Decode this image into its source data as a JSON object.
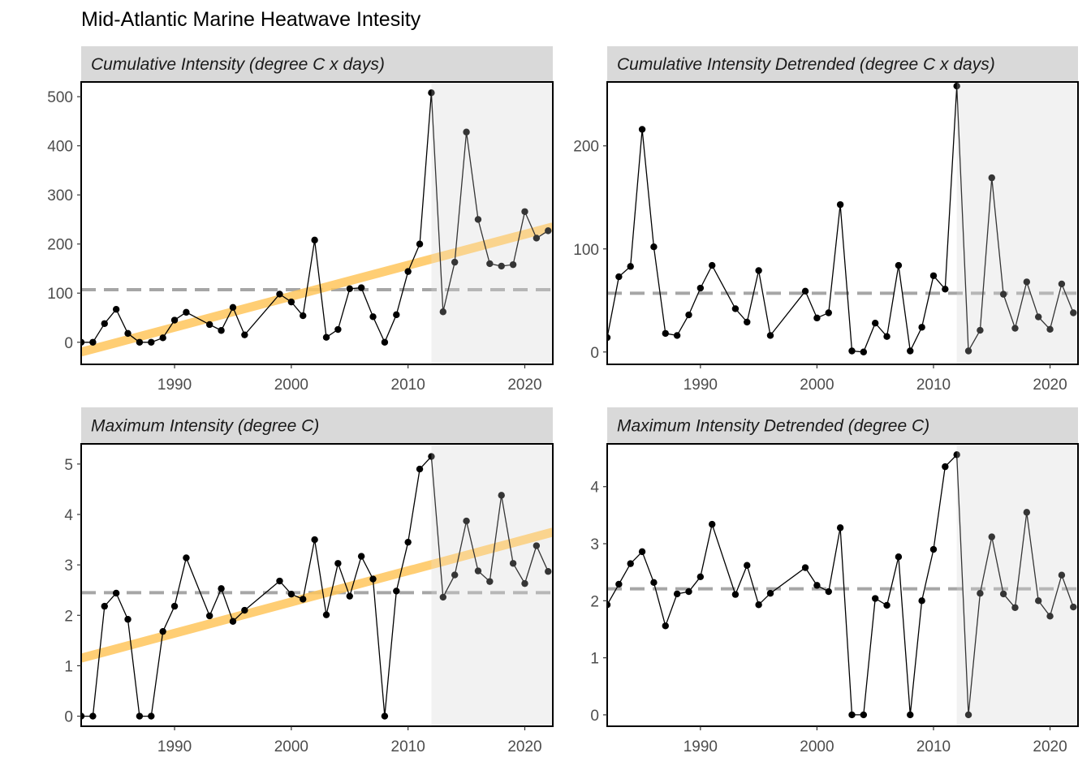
{
  "title": "Mid-Atlantic Marine Heatwave Intesity",
  "colors": {
    "line": "#000000",
    "trend": "#ffc65c",
    "mean_dash": "#a6a6a6",
    "shade": "#f2f2f2",
    "strip": "#d9d9d9",
    "axis_text": "#4d4d4d"
  },
  "chart_data": [
    {
      "type": "line",
      "panel": "top-left",
      "title": "Cumulative Intensity (degree C x days)",
      "xlim": [
        1982,
        2022.4
      ],
      "ylim": [
        -45,
        530
      ],
      "xticks": [
        1990,
        2000,
        2010,
        2020
      ],
      "yticks": [
        0,
        100,
        200,
        300,
        400,
        500
      ],
      "mean": 107,
      "shaded_from": 2012,
      "trend": [
        [
          1982,
          -20
        ],
        [
          2022.4,
          235
        ]
      ],
      "x": [
        1982,
        1983,
        1984,
        1985,
        1986,
        1987,
        1988,
        1989,
        1990,
        1991,
        1993,
        1994,
        1995,
        1996,
        1999,
        2000,
        2001,
        2002,
        2003,
        2004,
        2005,
        2006,
        2007,
        2008,
        2009,
        2010,
        2011,
        2012,
        2013,
        2014,
        2015,
        2016,
        2017,
        2018,
        2019,
        2020,
        2021,
        2022
      ],
      "y": [
        0,
        0,
        38,
        67,
        18,
        0,
        0,
        9,
        45,
        61,
        36,
        24,
        71,
        15,
        98,
        82,
        54,
        208,
        10,
        26,
        109,
        111,
        52,
        0,
        56,
        144,
        200,
        508,
        62,
        163,
        428,
        250,
        160,
        155,
        158,
        266,
        212,
        227
      ]
    },
    {
      "type": "line",
      "panel": "top-right",
      "title": "Cumulative Intensity Detrended (degree C x days)",
      "xlim": [
        1982,
        2022.4
      ],
      "ylim": [
        -12,
        262
      ],
      "xticks": [
        1990,
        2000,
        2010,
        2020
      ],
      "yticks": [
        0,
        100,
        200
      ],
      "mean": 57,
      "shaded_from": 2012,
      "x": [
        1982,
        1983,
        1984,
        1985,
        1986,
        1987,
        1988,
        1989,
        1990,
        1991,
        1993,
        1994,
        1995,
        1996,
        1999,
        2000,
        2001,
        2002,
        2003,
        2004,
        2005,
        2006,
        2007,
        2008,
        2009,
        2010,
        2011,
        2012,
        2013,
        2014,
        2015,
        2016,
        2017,
        2018,
        2019,
        2020,
        2021,
        2022
      ],
      "y": [
        14,
        73,
        83,
        216,
        102,
        18,
        16,
        36,
        62,
        84,
        42,
        29,
        79,
        16,
        59,
        33,
        38,
        143,
        1,
        0,
        28,
        15,
        84,
        1,
        24,
        74,
        61,
        258,
        1,
        21,
        169,
        56,
        23,
        68,
        34,
        22,
        66,
        38
      ]
    },
    {
      "type": "line",
      "panel": "bottom-left",
      "title": "Maximum Intensity (degree C)",
      "xlim": [
        1982,
        2022.4
      ],
      "ylim": [
        -0.2,
        5.4
      ],
      "xticks": [
        1990,
        2000,
        2010,
        2020
      ],
      "yticks": [
        0,
        1,
        2,
        3,
        4,
        5
      ],
      "mean": 2.45,
      "shaded_from": 2012,
      "trend": [
        [
          1982,
          1.15
        ],
        [
          2022.4,
          3.65
        ]
      ],
      "x": [
        1982,
        1983,
        1984,
        1985,
        1986,
        1987,
        1988,
        1989,
        1990,
        1991,
        1993,
        1994,
        1995,
        1996,
        1999,
        2000,
        2001,
        2002,
        2003,
        2004,
        2005,
        2006,
        2007,
        2008,
        2009,
        2010,
        2011,
        2012,
        2013,
        2014,
        2015,
        2016,
        2017,
        2018,
        2019,
        2020,
        2021,
        2022
      ],
      "y": [
        0,
        0,
        2.18,
        2.44,
        1.92,
        0,
        0,
        1.68,
        2.18,
        3.14,
        1.99,
        2.53,
        1.88,
        2.1,
        2.68,
        2.42,
        2.32,
        3.5,
        2.01,
        3.03,
        2.38,
        3.17,
        2.72,
        0,
        2.48,
        3.45,
        4.9,
        5.15,
        2.36,
        2.8,
        3.87,
        2.88,
        2.67,
        4.38,
        3.03,
        2.63,
        3.38,
        2.87
      ]
    },
    {
      "type": "line",
      "panel": "bottom-right",
      "title": "Maximum Intensity Detrended (degree C)",
      "xlim": [
        1982,
        2022.4
      ],
      "ylim": [
        -0.2,
        4.75
      ],
      "xticks": [
        1990,
        2000,
        2010,
        2020
      ],
      "yticks": [
        0,
        1,
        2,
        3,
        4
      ],
      "mean": 2.21,
      "shaded_from": 2012,
      "x": [
        1982,
        1983,
        1984,
        1985,
        1986,
        1987,
        1988,
        1989,
        1990,
        1991,
        1993,
        1994,
        1995,
        1996,
        1999,
        2000,
        2001,
        2002,
        2003,
        2004,
        2005,
        2006,
        2007,
        2008,
        2009,
        2010,
        2011,
        2012,
        2013,
        2014,
        2015,
        2016,
        2017,
        2018,
        2019,
        2020,
        2021,
        2022
      ],
      "y": [
        1.93,
        2.29,
        2.65,
        2.86,
        2.32,
        1.56,
        2.12,
        2.16,
        2.42,
        3.34,
        2.11,
        2.62,
        1.93,
        2.13,
        2.58,
        2.27,
        2.16,
        3.28,
        0,
        0,
        2.04,
        1.92,
        2.77,
        0,
        2.0,
        2.9,
        4.35,
        4.56,
        0,
        2.13,
        3.12,
        2.12,
        1.88,
        3.55,
        2.0,
        1.73,
        2.45,
        1.89
      ]
    }
  ]
}
